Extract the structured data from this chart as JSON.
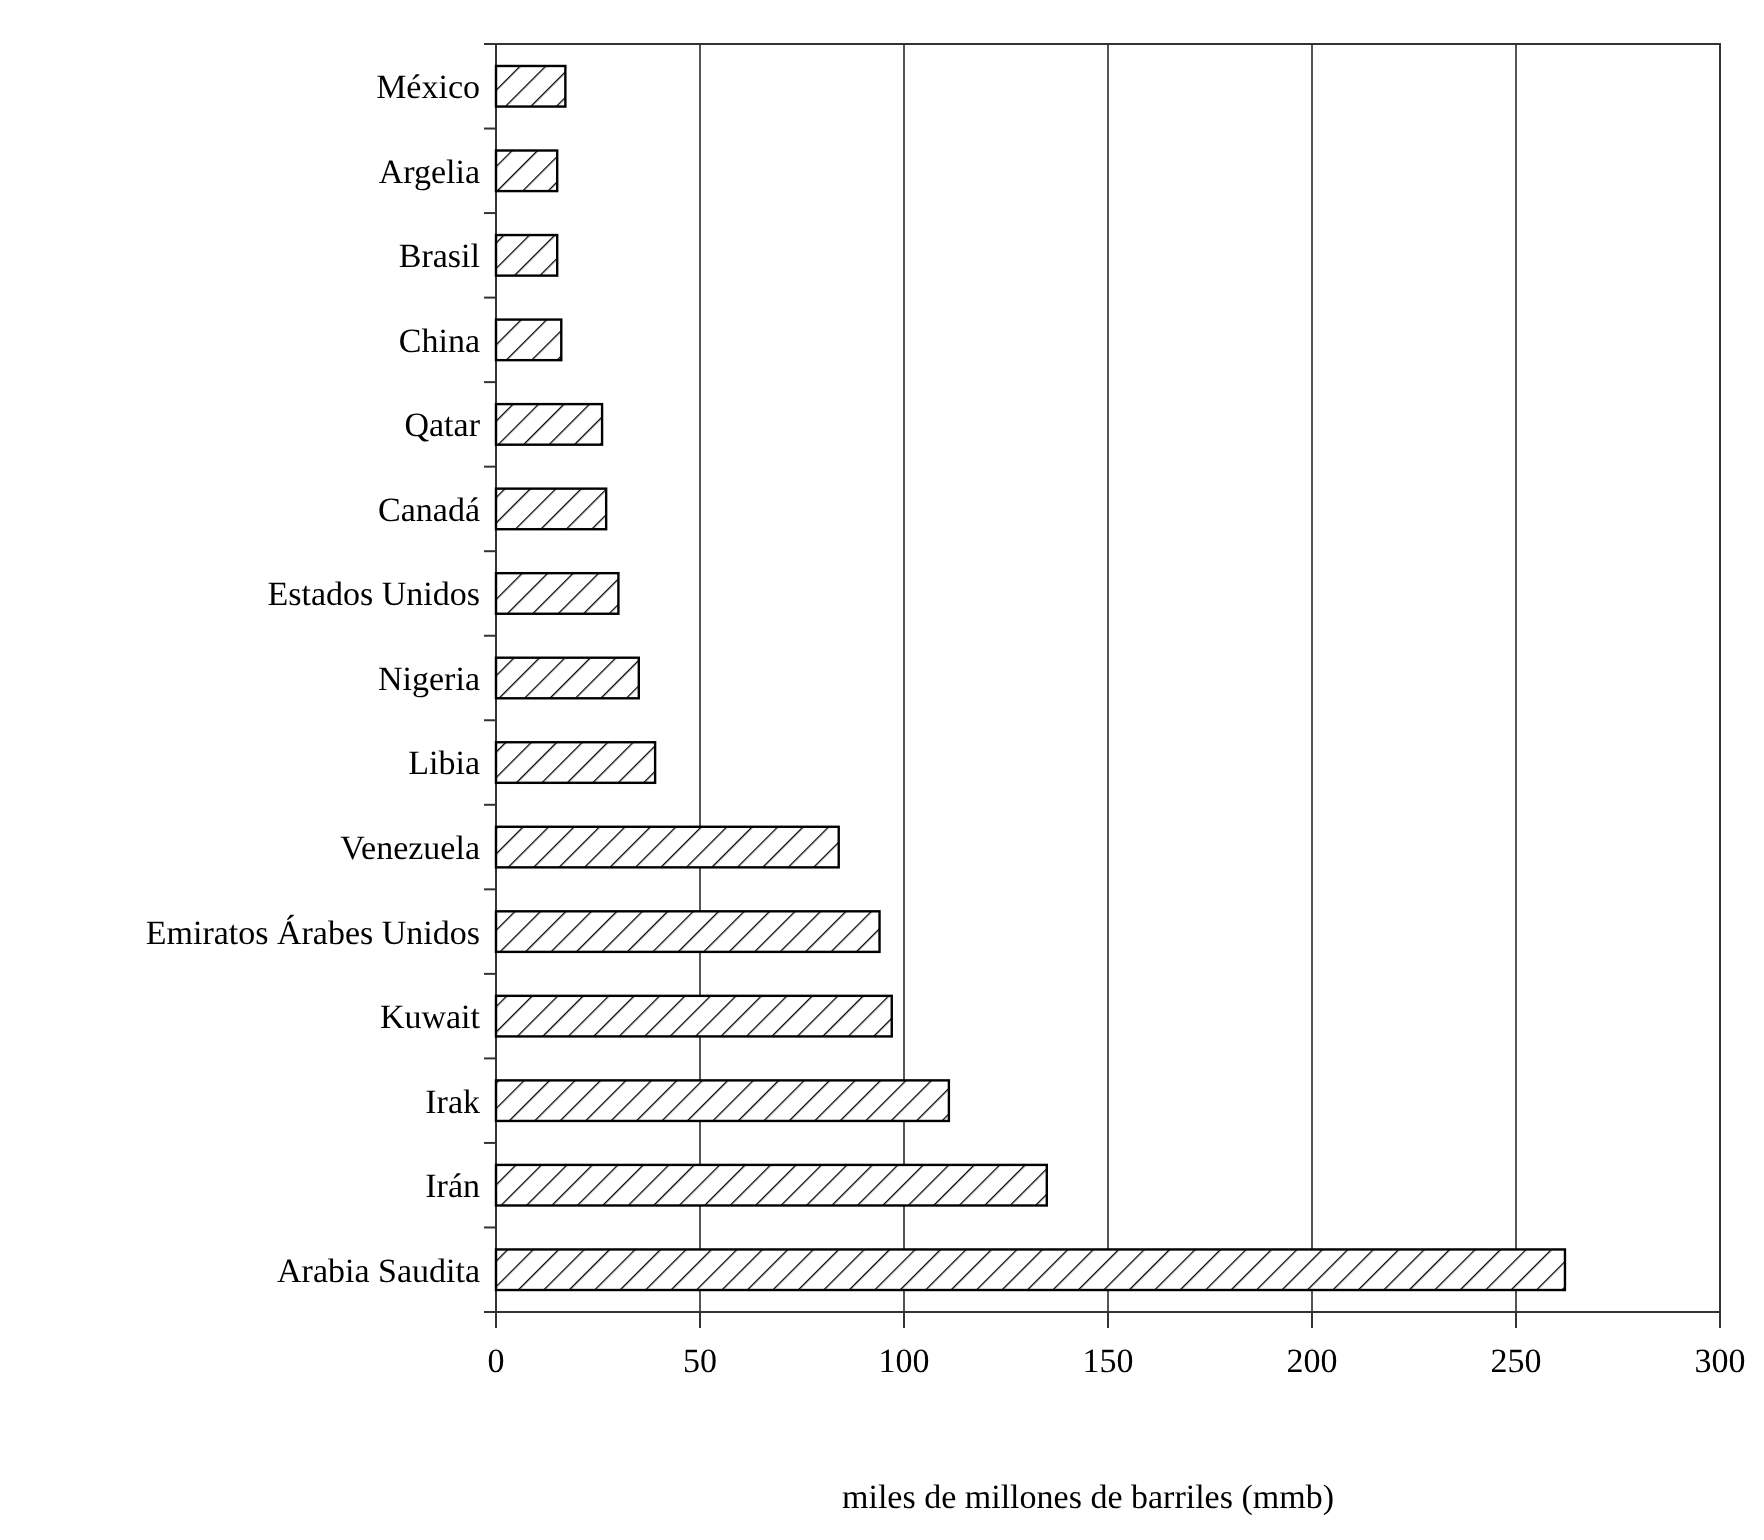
{
  "chart_data": {
    "type": "bar",
    "orientation": "horizontal",
    "xlabel": "miles de millones de barriles (mmb)",
    "categories": [
      "México",
      "Argelia",
      "Brasil",
      "China",
      "Qatar",
      "Canadá",
      "Estados Unidos",
      "Nigeria",
      "Libia",
      "Venezuela",
      "Emiratos Árabes Unidos",
      "Kuwait",
      "Irak",
      "Irán",
      "Arabia Saudita"
    ],
    "values": [
      17,
      15,
      15,
      16,
      26,
      27,
      30,
      35,
      39,
      84,
      94,
      97,
      111,
      135,
      262
    ],
    "color": "#000000",
    "xlim": [
      0,
      300
    ],
    "xticks": [
      0,
      50,
      100,
      150,
      200,
      250,
      300
    ],
    "grid": "x"
  }
}
